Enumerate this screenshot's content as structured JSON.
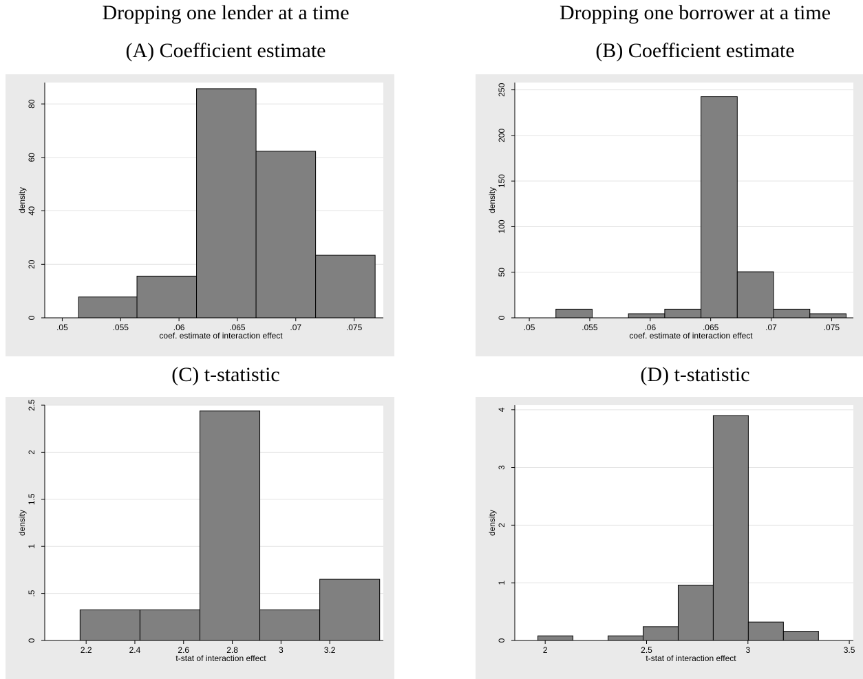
{
  "column_titles": [
    "Dropping one lender at a time",
    "Dropping one borrower at a time"
  ],
  "chart_data": [
    {
      "id": "A",
      "type": "bar",
      "title": "(A) Coefficient estimate",
      "xlabel": "coef. estimate of interaction effect",
      "ylabel": "density",
      "xlim": [
        0.0485,
        0.0775
      ],
      "ylim": [
        0,
        88
      ],
      "xticks": [
        0.05,
        0.055,
        0.06,
        0.065,
        0.07,
        0.075
      ],
      "xtick_labels": [
        ".05",
        ".055",
        ".06",
        ".065",
        ".07",
        ".075"
      ],
      "yticks": [
        0,
        20,
        40,
        60,
        80
      ],
      "ytick_labels": [
        "0",
        "20",
        "40",
        "60",
        "80"
      ],
      "bars": [
        {
          "x0": 0.0514,
          "x1": 0.0564,
          "value": 7.8
        },
        {
          "x0": 0.0564,
          "x1": 0.0615,
          "value": 15.6
        },
        {
          "x0": 0.0615,
          "x1": 0.0666,
          "value": 85.7
        },
        {
          "x0": 0.0666,
          "x1": 0.0717,
          "value": 62.3
        },
        {
          "x0": 0.0717,
          "x1": 0.0768,
          "value": 23.4
        }
      ],
      "grid": true
    },
    {
      "id": "B",
      "type": "bar",
      "title": "(B) Coefficient estimate",
      "xlabel": "coef. estimate of interaction effect",
      "ylabel": "density",
      "xlim": [
        0.0488,
        0.0768
      ],
      "ylim": [
        0,
        258
      ],
      "xticks": [
        0.05,
        0.055,
        0.06,
        0.065,
        0.07,
        0.075
      ],
      "xtick_labels": [
        ".05",
        ".055",
        ".06",
        ".065",
        ".07",
        ".075"
      ],
      "yticks": [
        0,
        50,
        100,
        150,
        200,
        250
      ],
      "ytick_labels": [
        "0",
        "50",
        "100",
        "150",
        "200",
        "250"
      ],
      "bars": [
        {
          "x0": 0.0522,
          "x1": 0.0552,
          "value": 9.5
        },
        {
          "x0": 0.0582,
          "x1": 0.0612,
          "value": 4.5
        },
        {
          "x0": 0.0612,
          "x1": 0.0642,
          "value": 9.5
        },
        {
          "x0": 0.0642,
          "x1": 0.0672,
          "value": 242.5
        },
        {
          "x0": 0.0672,
          "x1": 0.0702,
          "value": 50.5
        },
        {
          "x0": 0.0702,
          "x1": 0.0732,
          "value": 9.5
        },
        {
          "x0": 0.0732,
          "x1": 0.0762,
          "value": 4.5
        }
      ],
      "grid": true
    },
    {
      "id": "C",
      "type": "bar",
      "title": "(C) t-statistic",
      "xlabel": "t-stat of interaction effect",
      "ylabel": "density",
      "xlim": [
        2.03,
        3.42
      ],
      "ylim": [
        0,
        2.5
      ],
      "xticks": [
        2.2,
        2.4,
        2.6,
        2.8,
        3.0,
        3.2
      ],
      "xtick_labels": [
        "2.2",
        "2.4",
        "2.6",
        "2.8",
        "3",
        "3.2"
      ],
      "yticks": [
        0,
        0.5,
        1,
        1.5,
        2,
        2.5
      ],
      "ytick_labels": [
        "0",
        ".5",
        "1",
        "1.5",
        "2",
        "2.5"
      ],
      "bars": [
        {
          "x0": 2.175,
          "x1": 2.421,
          "value": 0.325
        },
        {
          "x0": 2.421,
          "x1": 2.667,
          "value": 0.325
        },
        {
          "x0": 2.667,
          "x1": 2.913,
          "value": 2.44
        },
        {
          "x0": 2.913,
          "x1": 3.159,
          "value": 0.325
        },
        {
          "x0": 3.159,
          "x1": 3.405,
          "value": 0.65
        }
      ],
      "grid": true
    },
    {
      "id": "D",
      "type": "bar",
      "title": "(D) t-statistic",
      "xlabel": "t-stat of interaction effect",
      "ylabel": "density",
      "xlim": [
        1.85,
        3.52
      ],
      "ylim": [
        0,
        4.08
      ],
      "xticks": [
        2,
        2.5,
        3,
        3.5
      ],
      "xtick_labels": [
        "2",
        "2.5",
        "3",
        "3.5"
      ],
      "yticks": [
        0,
        1,
        2,
        3,
        4
      ],
      "ytick_labels": [
        "0",
        "1",
        "2",
        "3",
        "4"
      ],
      "bars": [
        {
          "x0": 1.964,
          "x1": 2.137,
          "value": 0.08
        },
        {
          "x0": 2.31,
          "x1": 2.483,
          "value": 0.08
        },
        {
          "x0": 2.483,
          "x1": 2.656,
          "value": 0.24
        },
        {
          "x0": 2.656,
          "x1": 2.829,
          "value": 0.96
        },
        {
          "x0": 2.829,
          "x1": 3.002,
          "value": 3.9
        },
        {
          "x0": 3.002,
          "x1": 3.175,
          "value": 0.32
        },
        {
          "x0": 3.175,
          "x1": 3.348,
          "value": 0.16
        }
      ],
      "grid": true
    }
  ]
}
